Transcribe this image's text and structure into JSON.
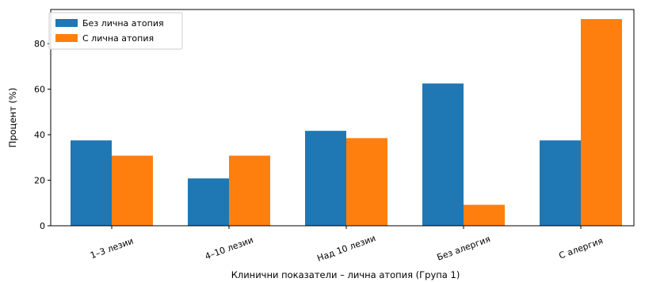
{
  "chart_data": {
    "type": "bar",
    "title": "",
    "xlabel": "Клинични показатели – лична атопия (Група 1)",
    "ylabel": "Процент (%)",
    "categories": [
      "1–3 лезии",
      "4–10 лезии",
      "Над 10 лезии",
      "Без алергия",
      "С алергия"
    ],
    "series": [
      {
        "name": "Без лична атопия",
        "color": "#1f77b4",
        "values": [
          37.5,
          20.8,
          41.7,
          62.5,
          37.5
        ]
      },
      {
        "name": "С лична атопия",
        "color": "#ff7f0e",
        "values": [
          30.8,
          30.8,
          38.5,
          9.2,
          90.8
        ]
      }
    ],
    "ylim": [
      0,
      95
    ],
    "yticks": [
      0,
      20,
      40,
      60,
      80
    ],
    "legend_position": "top-left",
    "grid": false
  }
}
